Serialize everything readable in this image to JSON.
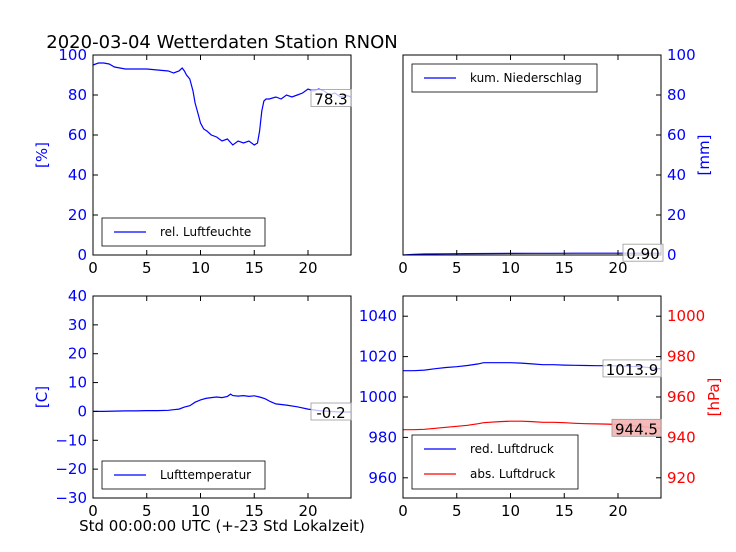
{
  "title": "2020-03-04 Wetterdaten Station RNON",
  "xlabel": "Std 00:00:00 UTC (+-23 Std Lokalzeit)",
  "colors": {
    "blue": "#0000ff",
    "red": "#ff0000",
    "badge_red": "#f4b4b4"
  },
  "chart_data": [
    {
      "type": "line",
      "panel": "top-left",
      "ylabel": "[%]",
      "xlim": [
        0,
        24
      ],
      "ylim": [
        0,
        100
      ],
      "xticks": [
        0,
        5,
        10,
        15,
        20
      ],
      "yticks": [
        0,
        20,
        40,
        60,
        80,
        100
      ],
      "legend_placement": "lower-left",
      "series": [
        {
          "name": "rel. Luftfeuchte",
          "color": "#0000ff",
          "x": [
            0,
            0.5,
            1,
            1.5,
            2,
            2.5,
            3,
            4,
            5,
            6,
            7,
            7.5,
            8,
            8.3,
            8.5,
            8.7,
            9,
            9.3,
            9.5,
            9.8,
            10,
            10.3,
            10.6,
            11,
            11.5,
            12,
            12.5,
            13,
            13.5,
            14,
            14.5,
            15,
            15.3,
            15.5,
            15.7,
            15.9,
            16.1,
            16.4,
            17,
            17.5,
            18,
            18.5,
            19,
            19.5,
            20,
            20.5,
            21,
            21.5,
            22,
            22.5,
            23,
            23.5,
            24
          ],
          "y": [
            95,
            96,
            96,
            95.5,
            94,
            93.5,
            93,
            93,
            93,
            92.5,
            92,
            91,
            92,
            93.5,
            92,
            90,
            88,
            82,
            76,
            70,
            66,
            63,
            62,
            60,
            59,
            57,
            58,
            55,
            57,
            56,
            57,
            55,
            56,
            62,
            72,
            77,
            78,
            78,
            79,
            78,
            80,
            79,
            80,
            81,
            83,
            82,
            83,
            82,
            80,
            81,
            79,
            80,
            79
          ]
        }
      ],
      "badge": {
        "text": "78.3",
        "y": 78.3
      }
    },
    {
      "type": "line",
      "panel": "top-right",
      "ylabel": "[mm]",
      "xlim": [
        0,
        24
      ],
      "ylim": [
        0,
        100
      ],
      "xticks": [
        0,
        5,
        10,
        15,
        20
      ],
      "yticks": [
        0,
        20,
        40,
        60,
        80,
        100
      ],
      "legend_placement": "upper-left",
      "series": [
        {
          "name": "kum. Niederschlag",
          "color": "#0000ff",
          "x": [
            0,
            1,
            2,
            4,
            6,
            8,
            10,
            12,
            14,
            16,
            18,
            20,
            22,
            24
          ],
          "y": [
            0,
            0.3,
            0.5,
            0.6,
            0.7,
            0.75,
            0.8,
            0.85,
            0.85,
            0.88,
            0.9,
            0.9,
            0.9,
            0.9
          ]
        }
      ],
      "badge": {
        "text": "0.90",
        "y": 0.9
      }
    },
    {
      "type": "line",
      "panel": "bottom-left",
      "ylabel": "[C]",
      "xlim": [
        0,
        24
      ],
      "ylim": [
        -30,
        40
      ],
      "xticks": [
        0,
        5,
        10,
        15,
        20
      ],
      "yticks": [
        -30,
        -20,
        -10,
        0,
        10,
        20,
        30,
        40
      ],
      "legend_placement": "lower-left",
      "series": [
        {
          "name": "Lufttemperatur",
          "color": "#0000ff",
          "x": [
            0,
            1,
            2,
            3,
            4,
            5,
            6,
            7,
            7.5,
            8,
            8.5,
            9,
            9.5,
            10,
            10.5,
            11,
            11.5,
            12,
            12.5,
            12.8,
            13,
            13.5,
            14,
            14.5,
            15,
            15.5,
            16,
            16.5,
            17,
            18,
            19,
            20,
            21,
            22,
            23,
            24
          ],
          "y": [
            0,
            0,
            0.1,
            0.2,
            0.2,
            0.3,
            0.3,
            0.4,
            0.6,
            0.8,
            1.5,
            2,
            3.2,
            4,
            4.5,
            4.8,
            5,
            4.8,
            5.2,
            6,
            5.5,
            5.3,
            5.5,
            5.2,
            5.4,
            5,
            4.4,
            3.4,
            2.6,
            2.2,
            1.6,
            0.8,
            0.3,
            0,
            -0.2,
            -0.2
          ]
        }
      ],
      "badge": {
        "text": "-0.2",
        "y": -0.2
      }
    },
    {
      "type": "line",
      "panel": "bottom-right",
      "ylabel_right": "[hPa]",
      "xlim": [
        0,
        24
      ],
      "ylim_left": [
        950,
        1050
      ],
      "ylim_right": [
        910,
        1010
      ],
      "xticks": [
        0,
        5,
        10,
        15,
        20
      ],
      "yticks_left": [
        960,
        980,
        1000,
        1020,
        1040
      ],
      "yticks_right": [
        920,
        940,
        960,
        980,
        1000
      ],
      "legend_placement": "lower-left",
      "series": [
        {
          "name": "red. Luftdruck",
          "color": "#0000ff",
          "axis": "left",
          "x": [
            0,
            1,
            2,
            3,
            4,
            5,
            6,
            7,
            7.5,
            8,
            9,
            10,
            11,
            12,
            13,
            14,
            15,
            16,
            17,
            18,
            19,
            20,
            21,
            22,
            23,
            24
          ],
          "y": [
            1013,
            1013,
            1013.3,
            1014,
            1014.6,
            1015,
            1015.6,
            1016.4,
            1017,
            1017,
            1017,
            1017,
            1016.8,
            1016.4,
            1016,
            1016,
            1015.8,
            1015.7,
            1015.6,
            1015.5,
            1015.5,
            1015.4,
            1015.2,
            1015,
            1014.5,
            1013.9
          ]
        },
        {
          "name": "abs. Luftdruck",
          "color": "#ff0000",
          "axis": "right",
          "x": [
            0,
            1,
            2,
            3,
            4,
            5,
            6,
            7,
            7.5,
            8,
            9,
            10,
            11,
            12,
            13,
            14,
            15,
            16,
            17,
            18,
            19,
            20,
            21,
            22,
            23,
            24
          ],
          "y": [
            943.8,
            943.8,
            944,
            944.5,
            945,
            945.5,
            946,
            946.8,
            947.3,
            947.5,
            947.8,
            948,
            948,
            947.8,
            947.5,
            947.5,
            947.3,
            947,
            946.8,
            946.7,
            946.6,
            946.4,
            946,
            945.5,
            945,
            944.5
          ]
        }
      ],
      "badges": [
        {
          "text": "1013.9",
          "y": 1013.9,
          "axis": "left"
        },
        {
          "text": "944.5",
          "y": 944.5,
          "axis": "right"
        }
      ]
    }
  ]
}
